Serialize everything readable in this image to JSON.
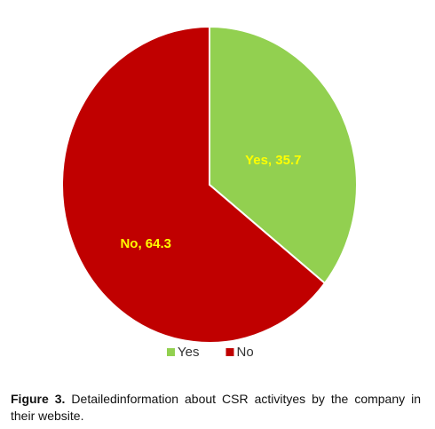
{
  "chart_data": {
    "type": "pie",
    "categories": [
      "Yes",
      "No"
    ],
    "values": [
      35.7,
      64.3
    ],
    "value_labels": [
      "Yes, 35.7",
      "No, 64.3"
    ],
    "colors": [
      "#92d050",
      "#c00000"
    ],
    "label_color": "#ffff00",
    "legend": "bottom"
  },
  "caption": {
    "label": "Figure 3.",
    "text": "Detailedinformation about CSR activityes by the company in their website."
  }
}
